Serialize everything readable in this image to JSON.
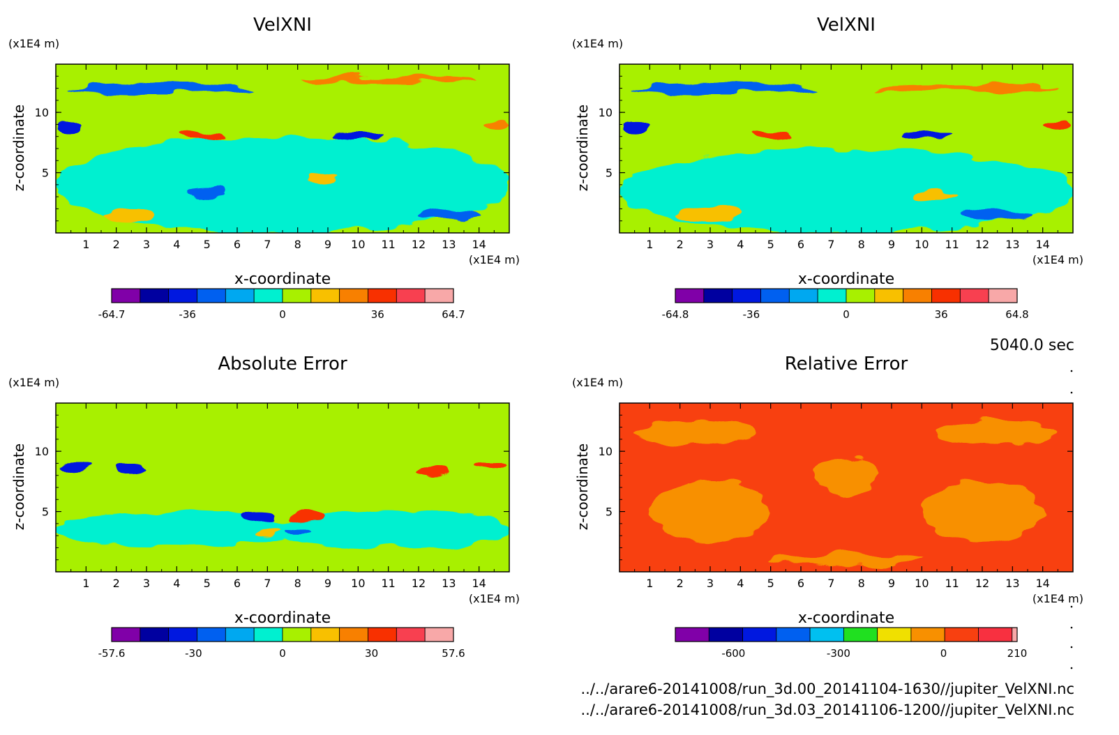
{
  "footer": {
    "time_label": "5040.0 sec",
    "file1": "../../arare6-20141008/run_3d.00_20141104-1630//jupiter_VelXNI.nc",
    "file2": "../../arare6-20141008/run_3d.03_20141106-1200//jupiter_VelXNI.nc"
  },
  "chart_data": [
    {
      "type": "heatmap",
      "title": "VelXNI",
      "xlabel": "x-coordinate",
      "ylabel": "z-coordinate",
      "x_unit": "(x1E4 m)",
      "y_unit": "(x1E4 m)",
      "xlim": [
        0,
        15
      ],
      "ylim": [
        0,
        14
      ],
      "xticks": [
        1,
        2,
        3,
        4,
        5,
        6,
        7,
        8,
        9,
        10,
        11,
        12,
        13,
        14
      ],
      "yticks": [
        5,
        10
      ],
      "colorbar": {
        "range": [
          -64.7,
          64.7
        ],
        "labels": [
          "-64.7",
          "-36",
          "0",
          "36",
          "64.7"
        ],
        "label_values": [
          -64.7,
          -36,
          0,
          36,
          64.7
        ],
        "colors": [
          "#8000a8",
          "#0000a0",
          "#0018e0",
          "#0060f0",
          "#00a8f0",
          "#00f0d0",
          "#a8f000",
          "#f8c000",
          "#f88000",
          "#f83000",
          "#f84050",
          "#f8a8a8"
        ]
      },
      "base_color": "#a8f000",
      "blobs": [
        {
          "x": 7.5,
          "z": 4,
          "rx": 7.5,
          "rz": 4,
          "c": "#00f0d0"
        },
        {
          "x": 3.5,
          "z": 12,
          "rx": 3,
          "rz": 0.4,
          "c": "#0060f0"
        },
        {
          "x": 11,
          "z": 12.7,
          "rx": 3,
          "rz": 0.3,
          "c": "#f88000"
        },
        {
          "x": 0.4,
          "z": 8.9,
          "rx": 0.35,
          "rz": 0.5,
          "c": "#0018e0"
        },
        {
          "x": 14.6,
          "z": 8.9,
          "rx": 0.35,
          "rz": 0.5,
          "c": "#f88000"
        },
        {
          "x": 4.8,
          "z": 8.1,
          "rx": 0.7,
          "rz": 0.35,
          "c": "#f83000"
        },
        {
          "x": 10,
          "z": 8.1,
          "rx": 0.8,
          "rz": 0.35,
          "c": "#0018e0"
        },
        {
          "x": 2.5,
          "z": 1.5,
          "rx": 0.8,
          "rz": 0.5,
          "c": "#f8c000"
        },
        {
          "x": 13,
          "z": 1.6,
          "rx": 1,
          "rz": 0.6,
          "c": "#0060f0"
        },
        {
          "x": 5,
          "z": 3.4,
          "rx": 0.6,
          "rz": 0.3,
          "c": "#0060f0"
        },
        {
          "x": 8.8,
          "z": 4.5,
          "rx": 0.5,
          "rz": 0.3,
          "c": "#f8c000"
        }
      ]
    },
    {
      "type": "heatmap",
      "title": "VelXNI",
      "xlabel": "x-coordinate",
      "ylabel": "z-coordinate",
      "x_unit": "(x1E4 m)",
      "y_unit": "(x1E4 m)",
      "xlim": [
        0,
        15
      ],
      "ylim": [
        0,
        14
      ],
      "xticks": [
        1,
        2,
        3,
        4,
        5,
        6,
        7,
        8,
        9,
        10,
        11,
        12,
        13,
        14
      ],
      "yticks": [
        5,
        10
      ],
      "colorbar": {
        "range": [
          -64.8,
          64.8
        ],
        "labels": [
          "-64.8",
          "-36",
          "0",
          "36",
          "64.8"
        ],
        "label_values": [
          -64.8,
          -36,
          0,
          36,
          64.8
        ],
        "colors": [
          "#8000a8",
          "#0000a0",
          "#0018e0",
          "#0060f0",
          "#00a8f0",
          "#00f0d0",
          "#a8f000",
          "#f8c000",
          "#f88000",
          "#f83000",
          "#f84050",
          "#f8a8a8"
        ]
      },
      "base_color": "#a8f000",
      "blobs": [
        {
          "x": 7.5,
          "z": 3.5,
          "rx": 7.5,
          "rz": 3.5,
          "c": "#00f0d0"
        },
        {
          "x": 3.5,
          "z": 12,
          "rx": 3,
          "rz": 0.4,
          "c": "#0060f0"
        },
        {
          "x": 11.5,
          "z": 12,
          "rx": 3,
          "rz": 0.3,
          "c": "#f88000"
        },
        {
          "x": 0.5,
          "z": 8.9,
          "rx": 0.4,
          "rz": 0.5,
          "c": "#0018e0"
        },
        {
          "x": 14.5,
          "z": 8.9,
          "rx": 0.4,
          "rz": 0.5,
          "c": "#f83000"
        },
        {
          "x": 5,
          "z": 8.2,
          "rx": 0.6,
          "rz": 0.35,
          "c": "#f83000"
        },
        {
          "x": 10.2,
          "z": 8.2,
          "rx": 0.8,
          "rz": 0.35,
          "c": "#0018e0"
        },
        {
          "x": 3,
          "z": 1.6,
          "rx": 1,
          "rz": 0.6,
          "c": "#f8c000"
        },
        {
          "x": 12.5,
          "z": 1.5,
          "rx": 1.2,
          "rz": 0.6,
          "c": "#0060f0"
        },
        {
          "x": 10.5,
          "z": 3.2,
          "rx": 0.7,
          "rz": 0.4,
          "c": "#f8c000"
        }
      ]
    },
    {
      "type": "heatmap",
      "title": "Absolute Error",
      "xlabel": "x-coordinate",
      "ylabel": "z-coordinate",
      "x_unit": "(x1E4 m)",
      "y_unit": "(x1E4 m)",
      "xlim": [
        0,
        15
      ],
      "ylim": [
        0,
        14
      ],
      "xticks": [
        1,
        2,
        3,
        4,
        5,
        6,
        7,
        8,
        9,
        10,
        11,
        12,
        13,
        14
      ],
      "yticks": [
        5,
        10
      ],
      "colorbar": {
        "range": [
          -57.6,
          57.6
        ],
        "labels": [
          "-57.6",
          "-30",
          "0",
          "30",
          "57.6"
        ],
        "label_values": [
          -57.6,
          -30,
          0,
          30,
          57.6
        ],
        "colors": [
          "#8000a8",
          "#0000a0",
          "#0018e0",
          "#0060f0",
          "#00a8f0",
          "#00f0d0",
          "#a8f000",
          "#f8c000",
          "#f88000",
          "#f83000",
          "#f84050",
          "#f8a8a8"
        ]
      },
      "base_color": "#a8f000",
      "blobs": [
        {
          "x": 4,
          "z": 3.5,
          "rx": 4,
          "rz": 1.5,
          "c": "#00f0d0"
        },
        {
          "x": 11,
          "z": 3.5,
          "rx": 4,
          "rz": 1.5,
          "c": "#00f0d0"
        },
        {
          "x": 0.6,
          "z": 8.8,
          "rx": 0.5,
          "rz": 0.35,
          "c": "#0018e0"
        },
        {
          "x": 14.4,
          "z": 8.8,
          "rx": 0.5,
          "rz": 0.35,
          "c": "#f83000"
        },
        {
          "x": 2.5,
          "z": 8.5,
          "rx": 0.5,
          "rz": 0.4,
          "c": "#0018e0"
        },
        {
          "x": 12.5,
          "z": 8.5,
          "rx": 0.5,
          "rz": 0.4,
          "c": "#f83000"
        },
        {
          "x": 6.7,
          "z": 4.6,
          "rx": 0.6,
          "rz": 0.4,
          "c": "#0018e0"
        },
        {
          "x": 8.3,
          "z": 4.6,
          "rx": 0.6,
          "rz": 0.4,
          "c": "#f83000"
        },
        {
          "x": 7,
          "z": 3.3,
          "rx": 0.4,
          "rz": 0.25,
          "c": "#f8c000"
        },
        {
          "x": 8,
          "z": 3.3,
          "rx": 0.4,
          "rz": 0.25,
          "c": "#0060f0"
        }
      ]
    },
    {
      "type": "heatmap",
      "title": "Relative Error",
      "xlabel": "x-coordinate",
      "ylabel": "z-coordinate",
      "x_unit": "(x1E4 m)",
      "y_unit": "(x1E4 m)",
      "xlim": [
        0,
        15
      ],
      "ylim": [
        0,
        14
      ],
      "xticks": [
        1,
        2,
        3,
        4,
        5,
        6,
        7,
        8,
        9,
        10,
        11,
        12,
        13,
        14
      ],
      "yticks": [
        5,
        10
      ],
      "colorbar": {
        "range": [
          -766,
          210
        ],
        "labels": [
          "-600",
          "-300",
          "0",
          "210"
        ],
        "label_values": [
          -600,
          -300,
          0,
          210
        ],
        "colors": [
          "#8000a8",
          "#0000a0",
          "#0018e0",
          "#0060f0",
          "#00c0f0",
          "#20e020",
          "#f0e000",
          "#f89000",
          "#f84010",
          "#f83040",
          "#f8a8a8"
        ],
        "color_widths": [
          1,
          1,
          1,
          1,
          1,
          1,
          1,
          1,
          1,
          1,
          0.15
        ]
      },
      "base_color": "#f84010",
      "blobs": [
        {
          "x": 2.5,
          "z": 11.5,
          "rx": 2,
          "rz": 1,
          "c": "#f89000"
        },
        {
          "x": 12.5,
          "z": 11.5,
          "rx": 2,
          "rz": 1,
          "c": "#f89000"
        },
        {
          "x": 3,
          "z": 5,
          "rx": 2,
          "rz": 2.5,
          "c": "#f89000"
        },
        {
          "x": 12,
          "z": 5,
          "rx": 2,
          "rz": 2.5,
          "c": "#f89000"
        },
        {
          "x": 7.5,
          "z": 8,
          "rx": 1,
          "rz": 1.5,
          "c": "#f89000"
        },
        {
          "x": 7.5,
          "z": 1,
          "rx": 2.5,
          "rz": 0.5,
          "c": "#f89000"
        }
      ]
    }
  ]
}
